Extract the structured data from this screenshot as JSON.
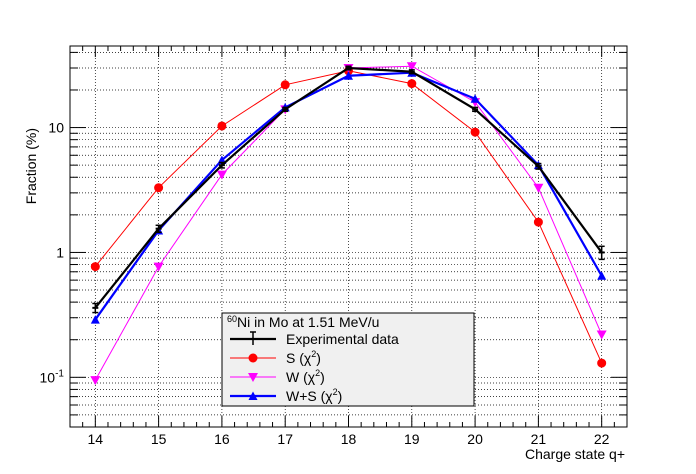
{
  "chart_data": {
    "type": "line",
    "title": "",
    "xlabel": "Charge state q+",
    "ylabel": "Fraction (%)",
    "yscale": "log",
    "xlim": [
      13.6,
      22.4
    ],
    "ylim": [
      0.04,
      45
    ],
    "x": [
      14,
      15,
      16,
      17,
      18,
      19,
      20,
      21,
      22
    ],
    "x_tick_labels": [
      "14",
      "15",
      "16",
      "17",
      "18",
      "19",
      "20",
      "21",
      "22"
    ],
    "y_tick_labels": [
      {
        "value": 0.1,
        "mantissa": "10",
        "exponent": "-1"
      },
      {
        "value": 1,
        "mantissa": "1",
        "exponent": ""
      },
      {
        "value": 10,
        "mantissa": "10",
        "exponent": ""
      }
    ],
    "grid": true,
    "legend_position": "bottom-center",
    "legend_title": {
      "superscript": "60",
      "text": "Ni in Mo at 1.51 MeV/u"
    },
    "series": [
      {
        "name": "Experimental data",
        "label_parts": [
          "Experimental data",
          "",
          ""
        ],
        "color": "#000000",
        "marker": "errorbar",
        "values": [
          0.36,
          1.55,
          5.0,
          14.0,
          30.0,
          28.0,
          14.0,
          4.9,
          1.0
        ],
        "errors": [
          0.03,
          0.1,
          0.25,
          0.5,
          1.0,
          1.0,
          0.5,
          0.25,
          0.12
        ]
      },
      {
        "name": "S (χ²)",
        "label_parts": [
          "S (χ",
          "2",
          ")"
        ],
        "color": "#ff0000",
        "marker": "circle",
        "values": [
          0.77,
          3.3,
          10.3,
          22.0,
          28.5,
          22.5,
          9.2,
          1.75,
          0.13
        ]
      },
      {
        "name": "W (χ²)",
        "label_parts": [
          "W (χ",
          "2",
          ")"
        ],
        "color": "#ff00ff",
        "marker": "triangle-down",
        "values": [
          0.095,
          0.77,
          4.2,
          14.0,
          30.0,
          31.0,
          16.0,
          3.3,
          0.22
        ]
      },
      {
        "name": "W+S (χ²)",
        "label_parts": [
          "W+S (χ",
          "2",
          ")"
        ],
        "color": "#0000ff",
        "marker": "triangle-up",
        "values": [
          0.29,
          1.5,
          5.5,
          14.5,
          26.0,
          27.5,
          17.0,
          5.0,
          0.65
        ]
      }
    ]
  }
}
